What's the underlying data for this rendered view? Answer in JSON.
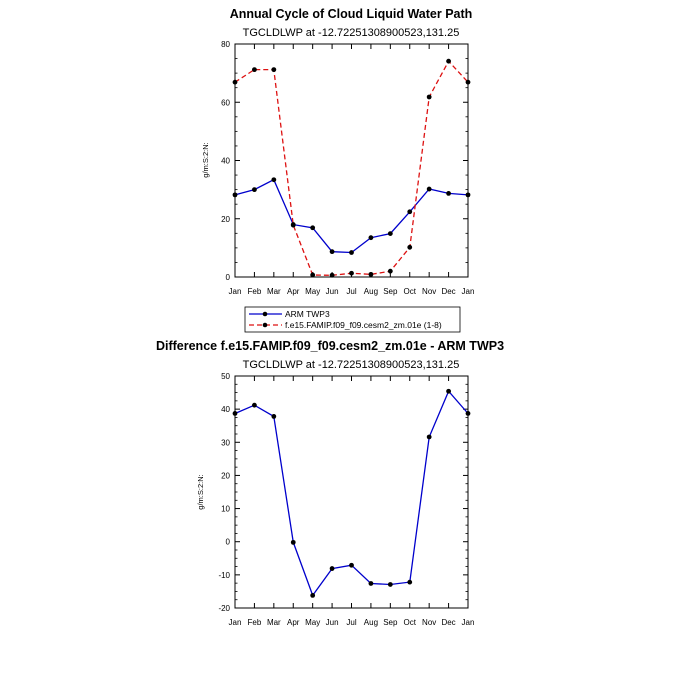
{
  "chart_data": [
    {
      "type": "line",
      "title": "Annual Cycle of Cloud Liquid Water Path",
      "subtitle": "TGCLDLWP at -12.72251308900523,131.25",
      "ylabel": "g/m:S:2:N:",
      "xlabel": "",
      "ylim": [
        0,
        80
      ],
      "yticks": [
        0,
        20,
        40,
        60,
        80
      ],
      "categories": [
        "Jan",
        "Feb",
        "Mar",
        "Apr",
        "May",
        "Jun",
        "Jul",
        "Aug",
        "Sep",
        "Oct",
        "Nov",
        "Dec",
        "Jan"
      ],
      "series": [
        {
          "name": "ARM TWP3",
          "color": "#0000cc",
          "dash": "solid",
          "values": [
            28.2,
            30.0,
            33.4,
            18.0,
            16.9,
            8.7,
            8.4,
            13.5,
            14.9,
            22.4,
            30.2,
            28.7,
            28.2
          ]
        },
        {
          "name": "f.e15.FAMIP.f09_f09.cesm2_zm.01e (1-8)",
          "color": "#dd1111",
          "dash": "dashed",
          "values": [
            66.9,
            71.2,
            71.2,
            17.8,
            0.7,
            0.6,
            1.3,
            0.9,
            2.0,
            10.2,
            61.8,
            74.1,
            66.9
          ]
        }
      ],
      "legend": {
        "placement": "below-plot",
        "entries": [
          "ARM TWP3",
          "f.e15.FAMIP.f09_f09.cesm2_zm.01e (1-8)"
        ]
      }
    },
    {
      "type": "line",
      "title": "Difference f.e15.FAMIP.f09_f09.cesm2_zm.01e - ARM TWP3",
      "subtitle": "TGCLDLWP at -12.72251308900523,131.25",
      "ylabel": "g/m:S:2:N:",
      "xlabel": "",
      "ylim": [
        -20,
        50
      ],
      "yticks": [
        -20,
        -10,
        0,
        10,
        20,
        30,
        40,
        50
      ],
      "categories": [
        "Jan",
        "Feb",
        "Mar",
        "Apr",
        "May",
        "Jun",
        "Jul",
        "Aug",
        "Sep",
        "Oct",
        "Nov",
        "Dec",
        "Jan"
      ],
      "series": [
        {
          "name": "Difference",
          "color": "#0000cc",
          "dash": "solid",
          "values": [
            38.7,
            41.2,
            37.8,
            -0.2,
            -16.2,
            -8.1,
            -7.1,
            -12.6,
            -12.9,
            -12.2,
            31.6,
            45.4,
            38.7
          ]
        }
      ]
    }
  ]
}
